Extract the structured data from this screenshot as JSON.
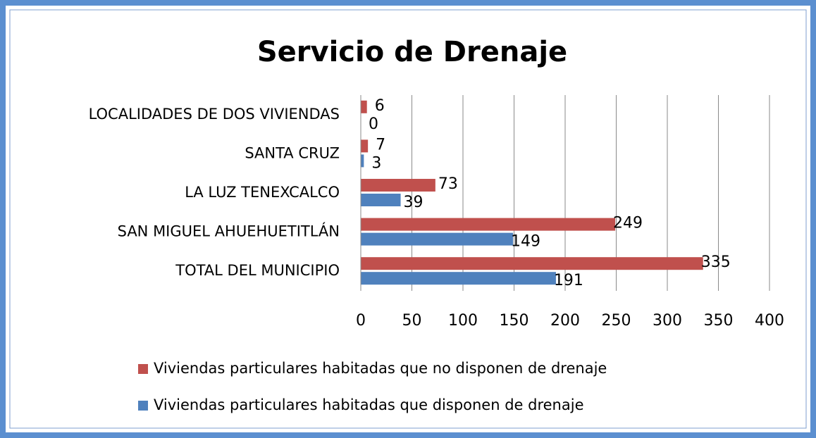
{
  "chart_data": {
    "type": "hbar",
    "title": "Servicio de Drenaje",
    "categories": [
      "LOCALIDADES DE DOS VIVIENDAS",
      "SANTA CRUZ",
      "LA LUZ TENEXCALCO",
      "SAN MIGUEL AHUEHUETITLÁN",
      "TOTAL DEL MUNICIPIO"
    ],
    "series": [
      {
        "name": "Viviendas particulares habitadas que no disponen de drenaje",
        "color": "#c0504d",
        "values": [
          6,
          7,
          73,
          249,
          335
        ]
      },
      {
        "name": "Viviendas particulares habitadas que disponen de drenaje",
        "color": "#4f81bd",
        "values": [
          0,
          3,
          39,
          149,
          191
        ]
      }
    ],
    "xlim": [
      0,
      400
    ],
    "xticks": [
      0,
      50,
      100,
      150,
      200,
      250,
      300,
      350,
      400
    ],
    "grid": true,
    "legend": "bottom"
  }
}
